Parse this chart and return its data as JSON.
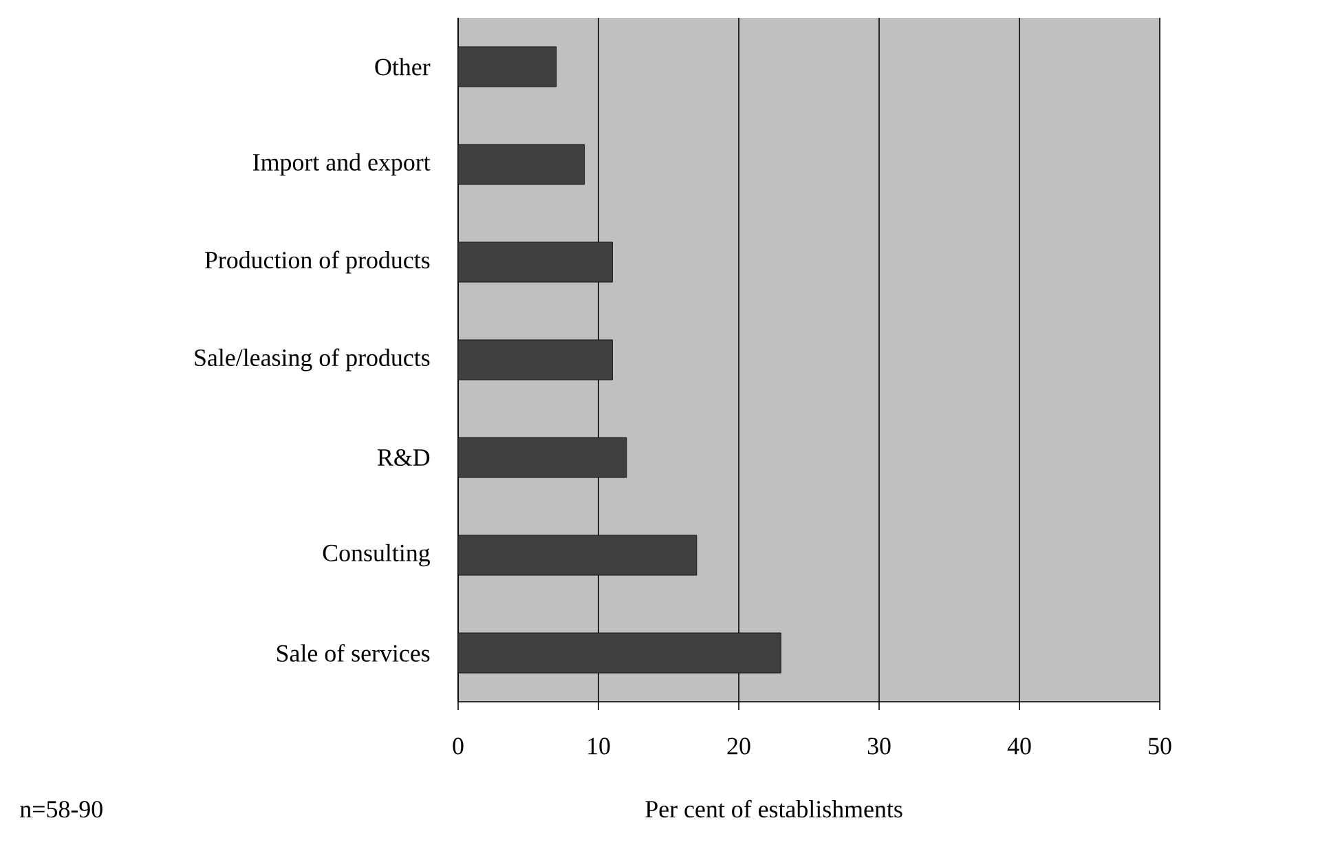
{
  "chart_data": {
    "type": "bar",
    "orientation": "horizontal",
    "categories": [
      "Other",
      "Import and export",
      "Production of products",
      "Sale/leasing of products",
      "R&D",
      "Consulting",
      "Sale of services"
    ],
    "values": [
      7,
      9,
      11,
      11,
      12,
      17,
      23
    ],
    "color": "#404040",
    "xlim": [
      0,
      50
    ],
    "xticks": [
      0,
      10,
      20,
      30,
      40,
      50
    ],
    "xlabel": "Per cent of establishments",
    "annotations": [
      "n=58-90"
    ],
    "grid": "x"
  }
}
